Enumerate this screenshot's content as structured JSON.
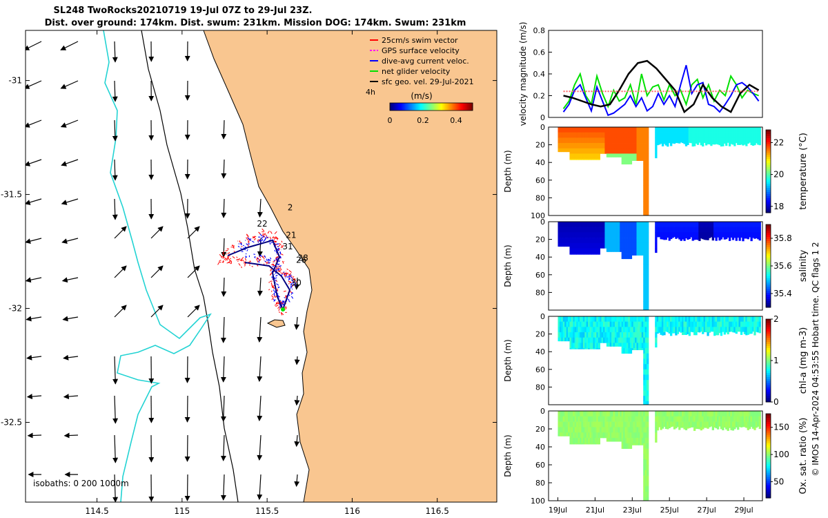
{
  "title": {
    "line1": "SL248 TwoRocks20210719 19-Jul 07Z to 29-Jul 23Z.",
    "line2": "Dist. over ground: 174km. Dist. swum: 231km. Mission DOG: 174km. Swum: 231km"
  },
  "colors": {
    "land": "#f9c690",
    "ocean": "#ffffff",
    "isobath_200": "#000000",
    "isobath_1000": "#22d3d3",
    "swim": "#ff0000",
    "gps": "#ff00ff",
    "dive": "#0000ff",
    "net": "#00e000",
    "geo": "#000000"
  },
  "chart_data": [
    {
      "type": "map",
      "xlim": [
        114.08,
        116.85
      ],
      "ylim": [
        -32.85,
        -30.78
      ],
      "xticks": [
        "114.5",
        "115",
        "115.5",
        "116",
        "116.5"
      ],
      "xtick_values": [
        114.5,
        115.0,
        115.5,
        116.0,
        116.5
      ],
      "yticks": [
        "-31",
        "-31.5",
        "-32",
        "-32.5"
      ],
      "ytick_values": [
        -31.0,
        -31.5,
        -32.0,
        -32.5
      ],
      "legend": [
        {
          "label": "25cm/s swim vector",
          "color": "#ff0000"
        },
        {
          "label": "GPS surface velocity",
          "color": "#ff00ff"
        },
        {
          "label": "dive-avg current veloc.",
          "color": "#0000ff"
        },
        {
          "label": "net glider velocity",
          "color": "#00e000"
        },
        {
          "label": "sfc geo. vel. 29-Jul-2021",
          "color": "#000000"
        }
      ],
      "legend_extra": "4h",
      "colorbar": {
        "label": "(m/s)",
        "ticks": [
          "0",
          "0.2",
          "0.4"
        ],
        "tick_values": [
          0,
          0.2,
          0.4
        ],
        "range": [
          0,
          0.5
        ]
      },
      "track_day_labels": [
        {
          "text": "2",
          "lon": 115.62,
          "lat": -31.57
        },
        {
          "text": "22",
          "lon": 115.44,
          "lat": -31.64
        },
        {
          "text": "21",
          "lon": 115.61,
          "lat": -31.69
        },
        {
          "text": "31",
          "lon": 115.59,
          "lat": -31.74
        },
        {
          "text": "28",
          "lon": 115.68,
          "lat": -31.79
        },
        {
          "text": "26",
          "lon": 115.67,
          "lat": -31.8
        },
        {
          "text": "30",
          "lon": 115.64,
          "lat": -31.9
        }
      ],
      "footnote": "isobaths: 0   200   1000m"
    },
    {
      "type": "line",
      "ylabel": "velocity magnitude (m/s)",
      "ylim": [
        0,
        0.8
      ],
      "yticks": [
        "0",
        "0.2",
        "0.4",
        "0.6",
        "0.8"
      ],
      "ytick_values": [
        0,
        0.2,
        0.4,
        0.6,
        0.8
      ],
      "xlim": [
        18.5,
        30.0
      ],
      "series": [
        {
          "name": "net glider velocity",
          "color": "#00e000",
          "x": [
            19.3,
            19.6,
            19.9,
            20.2,
            20.5,
            20.8,
            21.1,
            21.4,
            21.7,
            22.0,
            22.3,
            22.6,
            22.9,
            23.2,
            23.5,
            23.8,
            24.1,
            24.4,
            24.7,
            25.0,
            25.3,
            25.6,
            25.9,
            26.2,
            26.5,
            26.8,
            27.1,
            27.4,
            27.7,
            28.0,
            28.3,
            28.6,
            28.9,
            29.2,
            29.5,
            29.8
          ],
          "y": [
            0.08,
            0.15,
            0.3,
            0.4,
            0.2,
            0.12,
            0.38,
            0.22,
            0.1,
            0.25,
            0.15,
            0.18,
            0.3,
            0.12,
            0.4,
            0.2,
            0.28,
            0.3,
            0.16,
            0.3,
            0.2,
            0.25,
            0.12,
            0.3,
            0.35,
            0.18,
            0.3,
            0.15,
            0.25,
            0.2,
            0.38,
            0.3,
            0.18,
            0.25,
            0.22,
            0.2
          ]
        },
        {
          "name": "dive-avg current veloc.",
          "color": "#0000ff",
          "x": [
            19.3,
            19.6,
            19.9,
            20.2,
            20.5,
            20.8,
            21.1,
            21.4,
            21.7,
            22.0,
            22.3,
            22.6,
            22.9,
            23.2,
            23.5,
            23.8,
            24.1,
            24.4,
            24.7,
            25.0,
            25.3,
            25.6,
            25.9,
            26.2,
            26.5,
            26.8,
            27.1,
            27.4,
            27.7,
            28.0,
            28.3,
            28.6,
            28.9,
            29.2,
            29.5,
            29.8
          ],
          "y": [
            0.05,
            0.12,
            0.25,
            0.3,
            0.18,
            0.06,
            0.28,
            0.15,
            0.02,
            0.04,
            0.08,
            0.12,
            0.2,
            0.1,
            0.18,
            0.06,
            0.1,
            0.22,
            0.12,
            0.2,
            0.1,
            0.3,
            0.48,
            0.22,
            0.3,
            0.32,
            0.12,
            0.1,
            0.05,
            0.12,
            0.2,
            0.3,
            0.32,
            0.28,
            0.22,
            0.15
          ]
        },
        {
          "name": "sfc geo. vel.",
          "color": "#000000",
          "x": [
            19.3,
            19.8,
            20.3,
            20.8,
            21.3,
            21.8,
            22.3,
            22.8,
            23.3,
            23.8,
            24.3,
            24.8,
            25.3,
            25.8,
            26.3,
            26.8,
            27.3,
            27.8,
            28.3,
            28.8,
            29.3,
            29.8
          ],
          "y": [
            0.2,
            0.18,
            0.15,
            0.12,
            0.1,
            0.12,
            0.25,
            0.4,
            0.5,
            0.52,
            0.45,
            0.35,
            0.25,
            0.05,
            0.12,
            0.3,
            0.18,
            0.1,
            0.05,
            0.22,
            0.3,
            0.25
          ]
        },
        {
          "name": "GPS surface velocity",
          "color": "#ff6060",
          "x": [
            19.3,
            22.0,
            25.0,
            29.8
          ],
          "y": [
            0.24,
            0.24,
            0.24,
            0.24
          ]
        }
      ]
    },
    {
      "type": "heatmap",
      "ylabel": "Depth (m)",
      "cbar_label": "temperature (°C)",
      "cbar_ticks": [
        "18",
        "20",
        "22"
      ],
      "cbar_tick_values": [
        18,
        20,
        22
      ],
      "clim": [
        17.6,
        22.8
      ],
      "yticks": [
        "0",
        "20",
        "40",
        "60",
        "80",
        "100"
      ],
      "ytick_values": [
        0,
        20,
        40,
        60,
        80,
        100
      ],
      "ylim": [
        0,
        100
      ]
    },
    {
      "type": "heatmap",
      "ylabel": "Depth (m)",
      "cbar_label": "salinity",
      "cbar_ticks": [
        "35.4",
        "35.6",
        "35.8"
      ],
      "cbar_tick_values": [
        35.4,
        35.6,
        35.8
      ],
      "clim": [
        35.3,
        35.9
      ],
      "yticks": [
        "0",
        "20",
        "40",
        "60",
        "80"
      ],
      "ytick_values": [
        0,
        20,
        40,
        60,
        80
      ],
      "ylim": [
        0,
        100
      ]
    },
    {
      "type": "heatmap",
      "ylabel": "Depth (m)",
      "cbar_label": "chl-a (mg m-3)",
      "cbar_ticks": [
        "0",
        "1",
        "2"
      ],
      "cbar_tick_values": [
        0,
        1,
        2
      ],
      "clim": [
        0,
        2
      ],
      "yticks": [
        "0",
        "20",
        "40",
        "60",
        "80"
      ],
      "ytick_values": [
        0,
        20,
        40,
        60,
        80
      ],
      "ylim": [
        0,
        100
      ]
    },
    {
      "type": "heatmap",
      "ylabel": "Depth (m)",
      "cbar_label": "Ox. sat. ratio (%)",
      "cbar_ticks": [
        "50",
        "100",
        "150"
      ],
      "cbar_tick_values": [
        50,
        100,
        150
      ],
      "clim": [
        20,
        175
      ],
      "yticks": [
        "0",
        "20",
        "40",
        "60",
        "80",
        "100"
      ],
      "ytick_values": [
        0,
        20,
        40,
        60,
        80,
        100
      ],
      "ylim": [
        0,
        100
      ],
      "xticks": [
        "19Jul",
        "21Jul",
        "23Jul",
        "25Jul",
        "27Jul",
        "29Jul"
      ],
      "xtick_values": [
        19,
        21,
        23,
        25,
        27,
        29
      ]
    }
  ],
  "side_note": "© IMOS 14-Apr-2024 04:53:55 Hobart time. QC flags 1  2"
}
